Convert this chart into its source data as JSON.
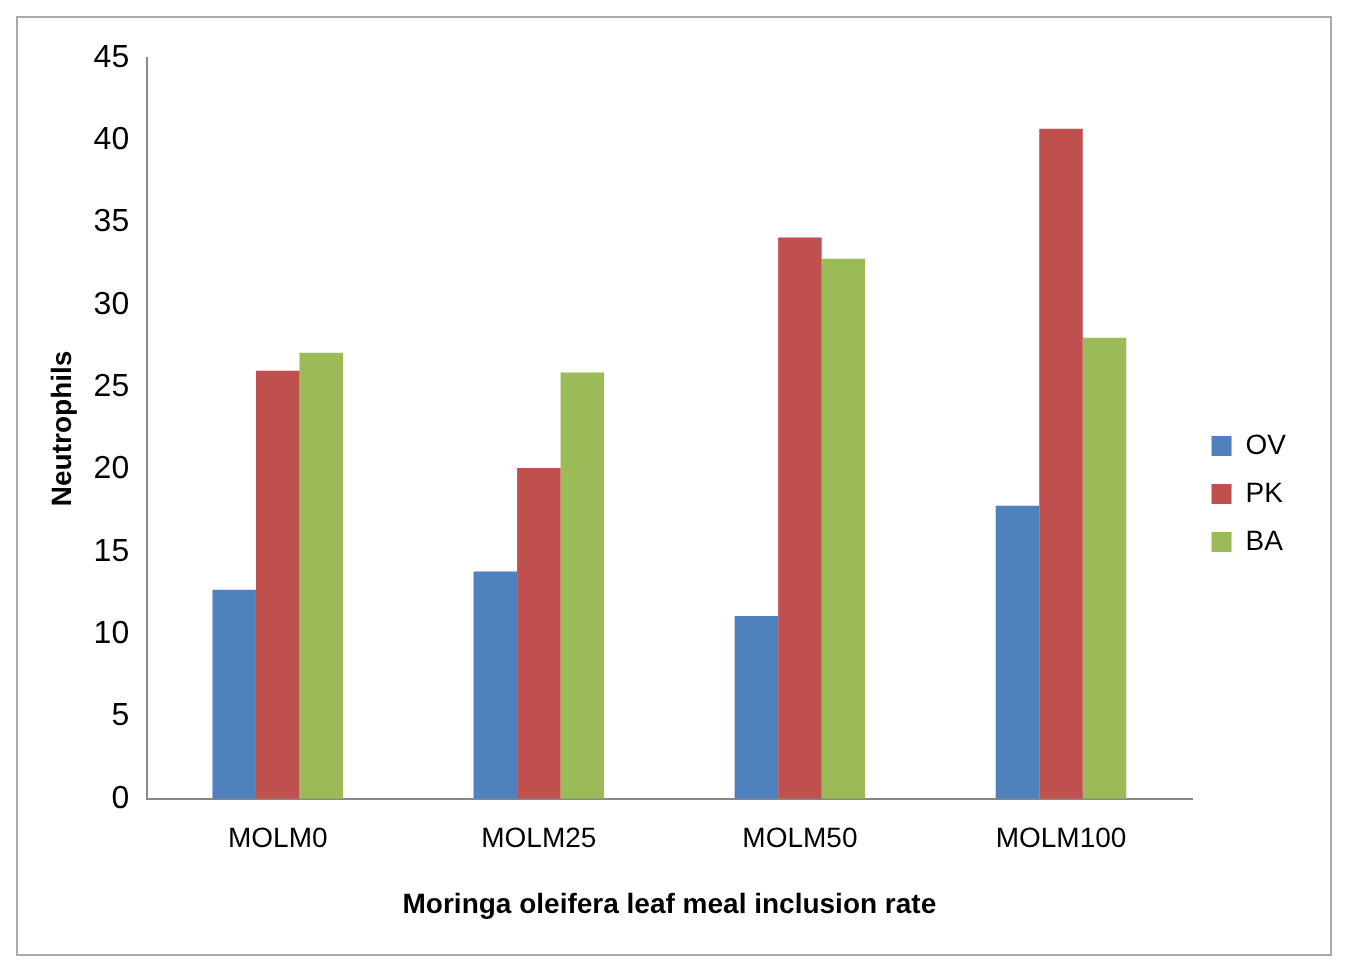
{
  "chart_data": {
    "type": "bar",
    "xlabel": "Moringa oleifera leaf meal inclusion rate",
    "ylabel": "Neutrophils",
    "categories": [
      "MOLM0",
      "MOLM25",
      "MOLM50",
      "MOLM100"
    ],
    "series": [
      {
        "name": "OV",
        "color": "#4f81bd",
        "values": [
          12.7,
          13.8,
          11.1,
          17.8
        ]
      },
      {
        "name": "PK",
        "color": "#c0504d",
        "values": [
          26.0,
          20.1,
          34.1,
          40.7
        ]
      },
      {
        "name": "BA",
        "color": "#9bbb59",
        "values": [
          27.1,
          25.9,
          32.8,
          28.0
        ]
      }
    ],
    "ylim": [
      0,
      45
    ],
    "yticks": [
      0,
      5,
      10,
      15,
      20,
      25,
      30,
      35,
      40,
      45
    ],
    "grid": false,
    "legend": "right"
  }
}
